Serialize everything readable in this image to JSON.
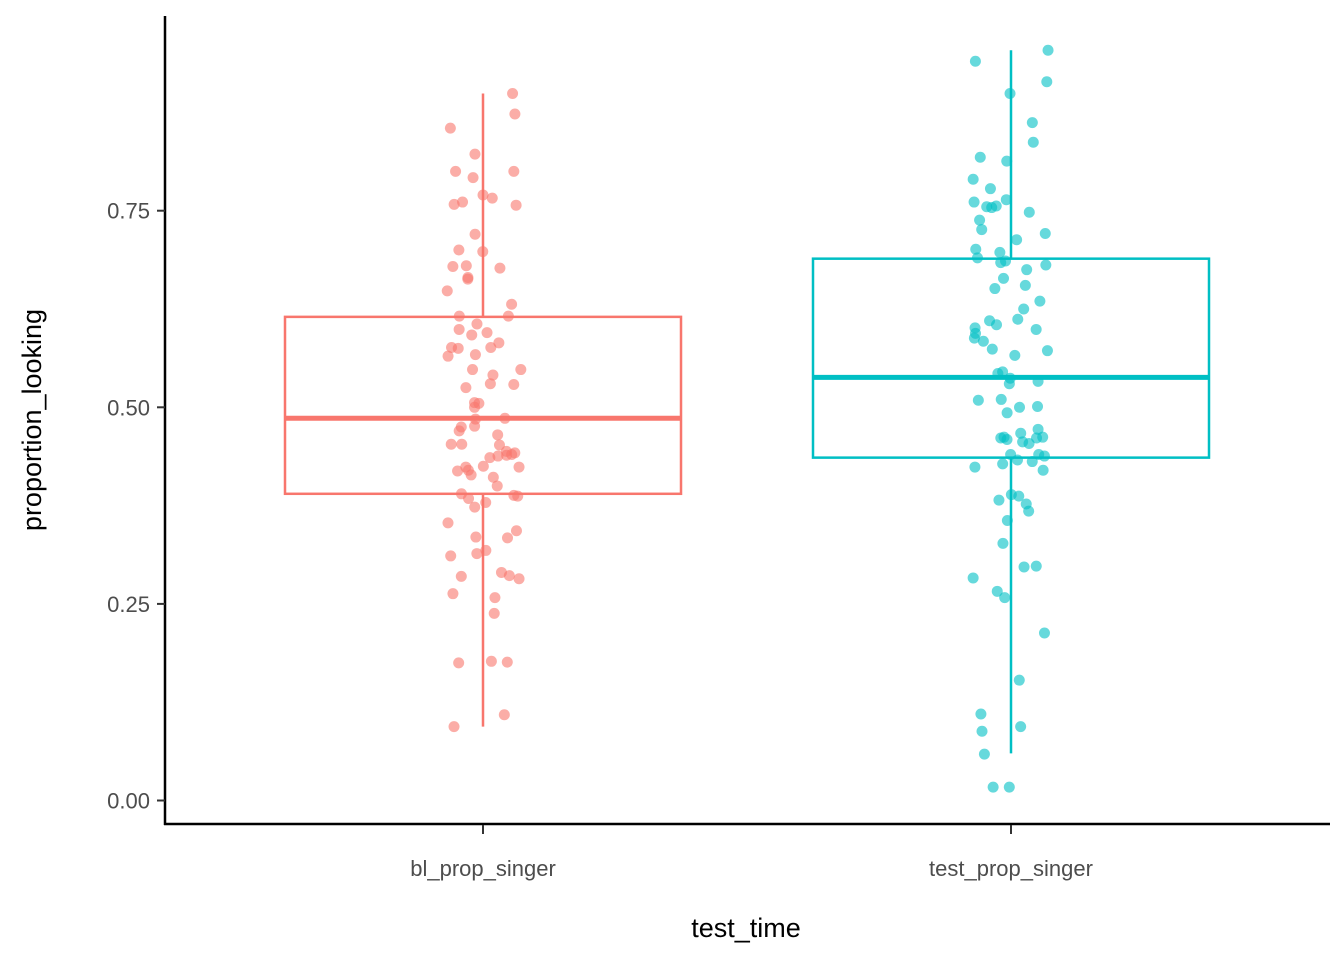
{
  "chart_data": {
    "type": "boxplot",
    "xlabel": "test_time",
    "ylabel": "proportion_looking",
    "categories": [
      "bl_prop_singer",
      "test_prop_singer"
    ],
    "yticks": [
      "0.00",
      "0.25",
      "0.50",
      "0.75"
    ],
    "ytick_values": [
      0,
      0.25,
      0.5,
      0.75
    ],
    "ylim": [
      -0.03,
      0.98
    ],
    "grid": false,
    "legend": "none",
    "series": [
      {
        "category": "bl_prop_singer",
        "color": "#F8766D",
        "whisker_low": 0.094,
        "q1": 0.39,
        "median": 0.486,
        "q3": 0.615,
        "whisker_high": 0.899,
        "points": [
          0.899,
          0.873,
          0.855,
          0.822,
          0.8,
          0.8,
          0.792,
          0.77,
          0.766,
          0.761,
          0.758,
          0.757,
          0.72,
          0.7,
          0.698,
          0.68,
          0.679,
          0.677,
          0.665,
          0.663,
          0.648,
          0.631,
          0.616,
          0.616,
          0.606,
          0.599,
          0.595,
          0.592,
          0.582,
          0.576,
          0.576,
          0.575,
          0.567,
          0.565,
          0.548,
          0.548,
          0.541,
          0.53,
          0.529,
          0.525,
          0.506,
          0.505,
          0.5,
          0.486,
          0.485,
          0.476,
          0.475,
          0.47,
          0.465,
          0.453,
          0.453,
          0.452,
          0.444,
          0.442,
          0.44,
          0.439,
          0.438,
          0.436,
          0.425,
          0.424,
          0.424,
          0.42,
          0.419,
          0.414,
          0.411,
          0.4,
          0.39,
          0.388,
          0.387,
          0.384,
          0.379,
          0.373,
          0.353,
          0.343,
          0.335,
          0.334,
          0.318,
          0.314,
          0.311,
          0.29,
          0.286,
          0.285,
          0.282,
          0.263,
          0.258,
          0.238,
          0.177,
          0.176,
          0.175,
          0.109,
          0.094
        ]
      },
      {
        "category": "test_prop_singer",
        "color": "#00BFC4",
        "whisker_low": 0.06,
        "q1": 0.436,
        "median": 0.538,
        "q3": 0.689,
        "whisker_high": 0.954,
        "points": [
          0.954,
          0.94,
          0.914,
          0.899,
          0.862,
          0.837,
          0.818,
          0.813,
          0.79,
          0.778,
          0.764,
          0.761,
          0.756,
          0.755,
          0.754,
          0.748,
          0.738,
          0.726,
          0.721,
          0.713,
          0.701,
          0.697,
          0.69,
          0.686,
          0.684,
          0.681,
          0.675,
          0.664,
          0.655,
          0.651,
          0.635,
          0.625,
          0.612,
          0.61,
          0.605,
          0.601,
          0.599,
          0.594,
          0.588,
          0.584,
          0.574,
          0.572,
          0.566,
          0.545,
          0.543,
          0.537,
          0.533,
          0.53,
          0.51,
          0.509,
          0.501,
          0.5,
          0.493,
          0.472,
          0.467,
          0.462,
          0.462,
          0.461,
          0.461,
          0.459,
          0.456,
          0.454,
          0.44,
          0.44,
          0.438,
          0.433,
          0.431,
          0.428,
          0.424,
          0.42,
          0.389,
          0.387,
          0.382,
          0.377,
          0.368,
          0.356,
          0.327,
          0.298,
          0.297,
          0.283,
          0.266,
          0.258,
          0.213,
          0.153,
          0.11,
          0.094,
          0.088,
          0.059,
          0.017,
          0.017
        ]
      }
    ]
  }
}
